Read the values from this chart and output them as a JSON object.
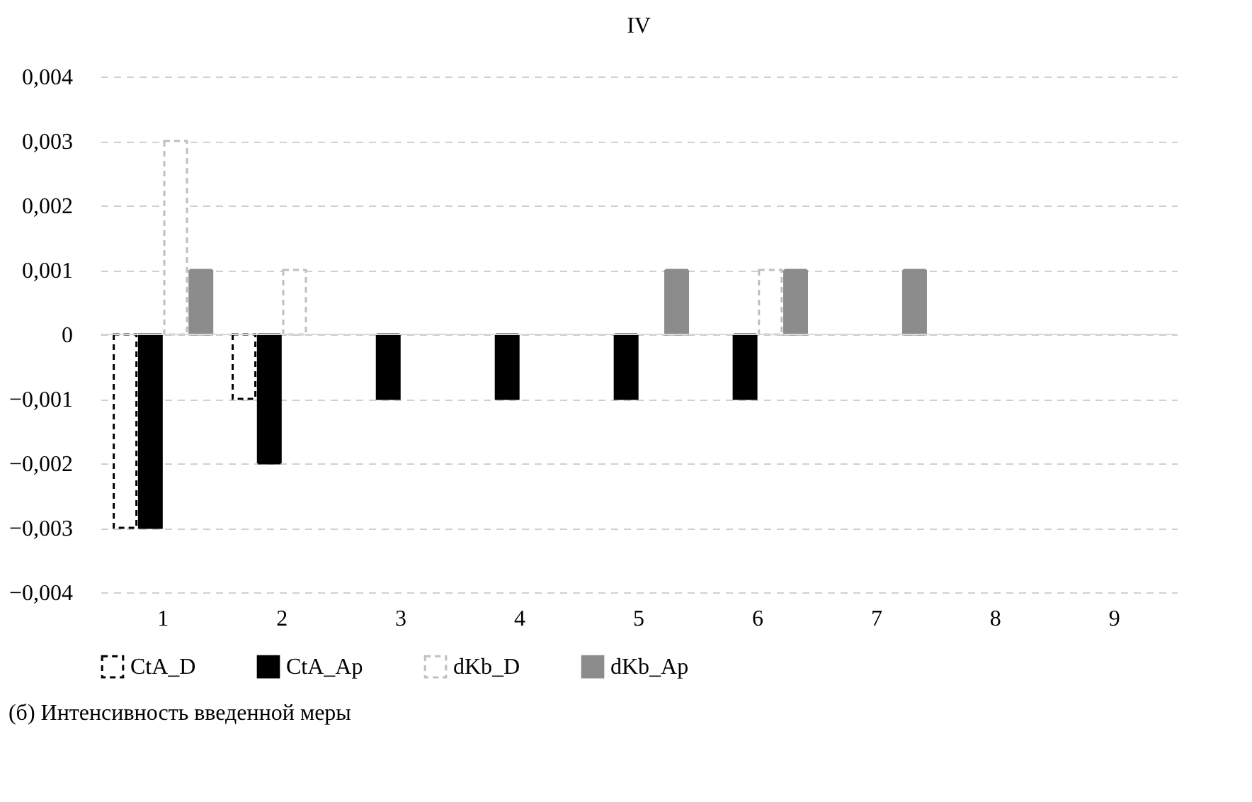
{
  "chart_data": {
    "type": "bar",
    "title": "IV",
    "xlabel": "(б) Интенсивность введенной меры",
    "categories": [
      "1",
      "2",
      "3",
      "4",
      "5",
      "6",
      "7",
      "8",
      "9"
    ],
    "series": [
      {
        "name": "CtA_D",
        "color": "#000000",
        "line_style": "dashed",
        "values": [
          -0.003,
          -0.001,
          0,
          0,
          0,
          0,
          0,
          0,
          0
        ]
      },
      {
        "name": "CtA_Ap",
        "color": "#000000",
        "values": [
          -0.003,
          -0.002,
          -0.001,
          -0.001,
          -0.001,
          -0.001,
          0,
          0,
          0
        ]
      },
      {
        "name": "dKb_D",
        "color": "#bfbfbf",
        "line_style": "dashed",
        "values": [
          0.003,
          0.001,
          0,
          0,
          0,
          0.001,
          0,
          0,
          0
        ]
      },
      {
        "name": "dKb_Ap",
        "color": "#8c8c8c",
        "values": [
          0.001,
          0,
          0,
          0,
          0.001,
          0.001,
          0.001,
          0,
          0
        ]
      }
    ],
    "ylim": [
      -0.004,
      0.004
    ],
    "yticks": [
      {
        "value": -0.004,
        "label": "−0,004"
      },
      {
        "value": -0.003,
        "label": "−0,003"
      },
      {
        "value": -0.002,
        "label": "−0,002"
      },
      {
        "value": -0.001,
        "label": "−0,001"
      },
      0,
      {
        "value": 0.001,
        "label": "0,001"
      },
      {
        "value": 0.002,
        "label": "0,002"
      },
      {
        "value": 0.003,
        "label": "0,003"
      },
      {
        "value": 0.004,
        "label": "0,004"
      }
    ],
    "grid": "y",
    "legend": "bottom"
  }
}
